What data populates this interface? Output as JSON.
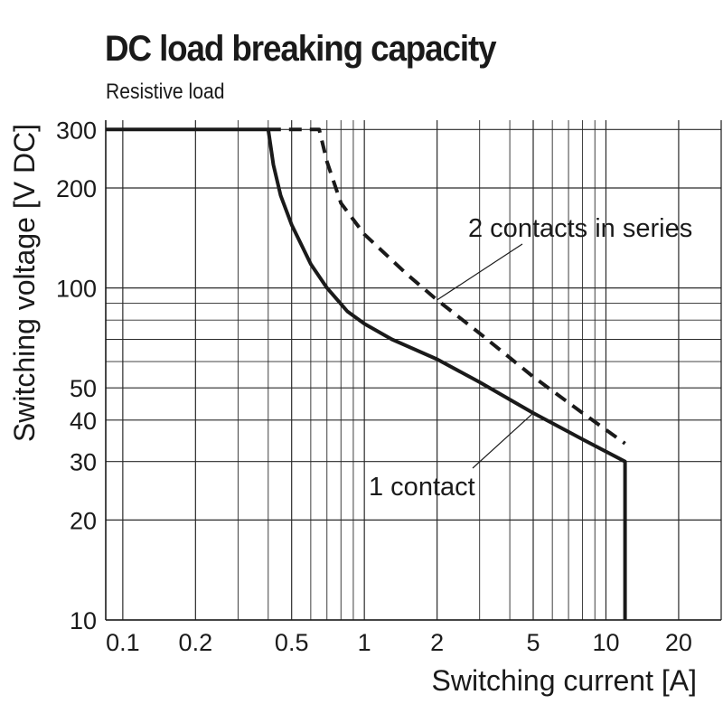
{
  "chart_data": {
    "type": "line",
    "title": "DC load breaking capacity",
    "subtitle": "Resistive load",
    "xlabel": "Switching current [A]",
    "ylabel": "Switching voltage [V DC]",
    "x_scale": "log",
    "y_scale": "log",
    "xlim": [
      0.085,
      30
    ],
    "ylim": [
      10,
      320
    ],
    "x_ticks": [
      0.1,
      0.2,
      0.5,
      1,
      2,
      5,
      10,
      20
    ],
    "x_tick_labels": [
      "0.1",
      "0.2",
      "0.5",
      "1",
      "2",
      "5",
      "10",
      "20"
    ],
    "y_ticks": [
      10,
      20,
      30,
      40,
      50,
      100,
      200,
      300
    ],
    "y_tick_labels": [
      "10",
      "20",
      "30",
      "40",
      "50",
      "100",
      "200",
      "300"
    ],
    "grid": true,
    "series": [
      {
        "name": "1 contact",
        "style": "solid",
        "points": [
          [
            0.085,
            300
          ],
          [
            0.4,
            300
          ],
          [
            0.42,
            235
          ],
          [
            0.45,
            190
          ],
          [
            0.5,
            155
          ],
          [
            0.6,
            118
          ],
          [
            0.7,
            100
          ],
          [
            0.85,
            85
          ],
          [
            1,
            78
          ],
          [
            1.3,
            70
          ],
          [
            2,
            61
          ],
          [
            3,
            52
          ],
          [
            5,
            42
          ],
          [
            8,
            35
          ],
          [
            12,
            30
          ],
          [
            12,
            10
          ]
        ]
      },
      {
        "name": "2 contacts in series",
        "style": "dashed",
        "points": [
          [
            0.4,
            300
          ],
          [
            0.65,
            300
          ],
          [
            0.7,
            240
          ],
          [
            0.8,
            180
          ],
          [
            1,
            145
          ],
          [
            1.5,
            110
          ],
          [
            2,
            92
          ],
          [
            3,
            73
          ],
          [
            5,
            54
          ],
          [
            8,
            42
          ],
          [
            12,
            34
          ]
        ]
      }
    ],
    "annotations": [
      {
        "text": "2 contacts in series",
        "target_series": "2 contacts in series"
      },
      {
        "text": "1 contact",
        "target_series": "1 contact"
      }
    ]
  }
}
